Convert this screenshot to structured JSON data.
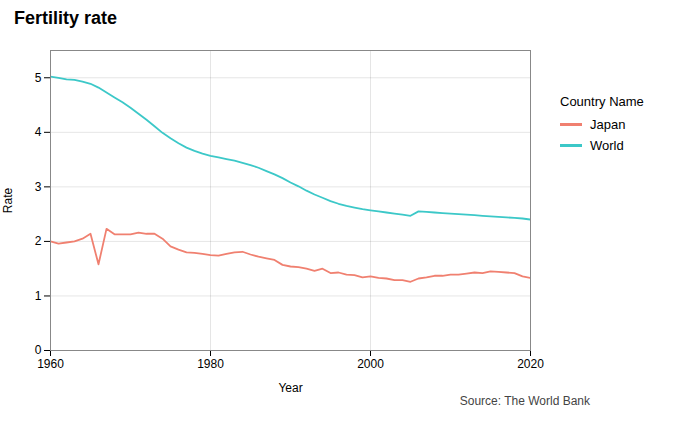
{
  "chart_data": {
    "type": "line",
    "title": "Fertility rate",
    "xlabel": "Year",
    "ylabel": "Rate",
    "source": "Source: The World Bank",
    "legend_title": "Country Name",
    "legend": "right",
    "grid": true,
    "xlim": [
      1960,
      2020
    ],
    "ylim": [
      0,
      5.5
    ],
    "xticks": [
      1960,
      1980,
      2000,
      2020
    ],
    "yticks": [
      0,
      1,
      2,
      3,
      4,
      5
    ],
    "x": [
      1960,
      1961,
      1962,
      1963,
      1964,
      1965,
      1966,
      1967,
      1968,
      1969,
      1970,
      1971,
      1972,
      1973,
      1974,
      1975,
      1976,
      1977,
      1978,
      1979,
      1980,
      1981,
      1982,
      1983,
      1984,
      1985,
      1986,
      1987,
      1988,
      1989,
      1990,
      1991,
      1992,
      1993,
      1994,
      1995,
      1996,
      1997,
      1998,
      1999,
      2000,
      2001,
      2002,
      2003,
      2004,
      2005,
      2006,
      2007,
      2008,
      2009,
      2010,
      2011,
      2012,
      2013,
      2014,
      2015,
      2016,
      2017,
      2018,
      2019,
      2020
    ],
    "series": [
      {
        "name": "Japan",
        "color": "#f08070",
        "values": [
          2.0,
          1.96,
          1.98,
          2.0,
          2.05,
          2.14,
          1.58,
          2.23,
          2.13,
          2.13,
          2.13,
          2.16,
          2.14,
          2.14,
          2.05,
          1.91,
          1.85,
          1.8,
          1.79,
          1.77,
          1.75,
          1.74,
          1.77,
          1.8,
          1.81,
          1.76,
          1.72,
          1.69,
          1.66,
          1.57,
          1.54,
          1.53,
          1.5,
          1.46,
          1.5,
          1.42,
          1.43,
          1.39,
          1.38,
          1.34,
          1.36,
          1.33,
          1.32,
          1.29,
          1.29,
          1.26,
          1.32,
          1.34,
          1.37,
          1.37,
          1.39,
          1.39,
          1.41,
          1.43,
          1.42,
          1.45,
          1.44,
          1.43,
          1.42,
          1.36,
          1.33
        ]
      },
      {
        "name": "World",
        "color": "#3cc8c8",
        "values": [
          5.02,
          5.0,
          4.97,
          4.96,
          4.93,
          4.89,
          4.82,
          4.73,
          4.64,
          4.55,
          4.45,
          4.34,
          4.23,
          4.11,
          3.99,
          3.89,
          3.8,
          3.72,
          3.66,
          3.61,
          3.57,
          3.54,
          3.51,
          3.48,
          3.44,
          3.4,
          3.35,
          3.29,
          3.23,
          3.16,
          3.08,
          3.01,
          2.93,
          2.86,
          2.8,
          2.74,
          2.69,
          2.65,
          2.62,
          2.59,
          2.57,
          2.55,
          2.53,
          2.51,
          2.49,
          2.47,
          2.55,
          2.54,
          2.53,
          2.52,
          2.51,
          2.5,
          2.49,
          2.48,
          2.47,
          2.46,
          2.45,
          2.44,
          2.43,
          2.42,
          2.4
        ]
      }
    ]
  }
}
